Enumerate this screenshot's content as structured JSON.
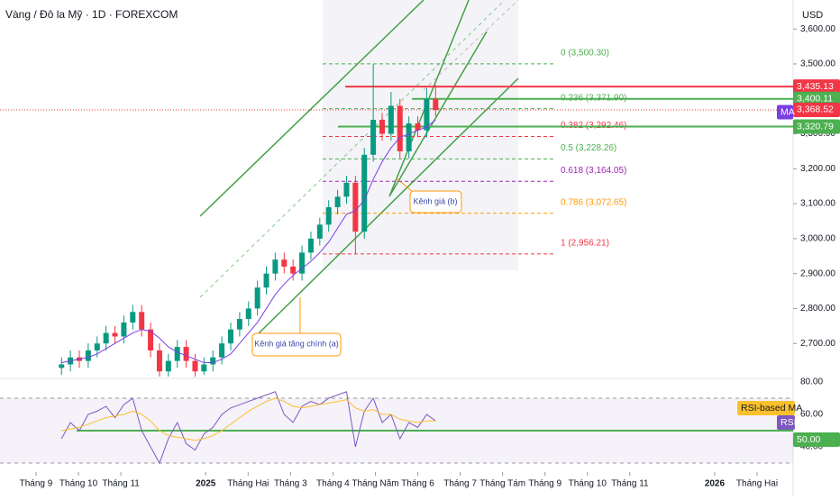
{
  "chart_data": {
    "type": "candlestick",
    "title": "Vàng / Đô la Mỹ · 1D · FOREXCOM",
    "currency": "USD",
    "up_color": "#089981",
    "down_color": "#f23645",
    "x": [
      0.6,
      0.81,
      1.02,
      1.23,
      1.44,
      1.65,
      1.86,
      2.07,
      2.28,
      2.49,
      2.7,
      2.91,
      3.12,
      3.33,
      3.54,
      3.75,
      3.96,
      4.17,
      4.38,
      4.59,
      4.8,
      5.01,
      5.22,
      5.43,
      5.64,
      5.85,
      6.06,
      6.27,
      6.48,
      6.69,
      6.9,
      7.11,
      7.32,
      7.53,
      7.74,
      7.95,
      8.16,
      8.37,
      8.58,
      8.79,
      9.0,
      9.21,
      9.42
    ],
    "open": [
      2630,
      2640,
      2660,
      2650,
      2680,
      2700,
      2730,
      2720,
      2760,
      2790,
      2740,
      2680,
      2620,
      2650,
      2690,
      2650,
      2620,
      2640,
      2660,
      2700,
      2740,
      2770,
      2800,
      2860,
      2900,
      2940,
      2920,
      2900,
      2960,
      3000,
      3040,
      3090,
      3120,
      3160,
      3020,
      3240,
      3340,
      3300,
      3380,
      3250,
      3330,
      3310,
      3400
    ],
    "high": [
      2660,
      2680,
      2680,
      2700,
      2720,
      2750,
      2750,
      2780,
      2810,
      2810,
      2760,
      2700,
      2670,
      2710,
      2710,
      2670,
      2660,
      2680,
      2720,
      2760,
      2790,
      2820,
      2880,
      2920,
      2960,
      2960,
      2940,
      2980,
      3020,
      3060,
      3110,
      3140,
      3180,
      3180,
      3260,
      3500,
      3360,
      3420,
      3400,
      3350,
      3350,
      3430,
      3440
    ],
    "low": [
      2610,
      2620,
      2630,
      2630,
      2660,
      2680,
      2700,
      2700,
      2740,
      2720,
      2660,
      2605,
      2605,
      2630,
      2630,
      2605,
      2610,
      2620,
      2640,
      2680,
      2720,
      2750,
      2780,
      2840,
      2880,
      2900,
      2880,
      2880,
      2940,
      2980,
      3020,
      3070,
      3100,
      2956,
      3000,
      3220,
      3280,
      3280,
      3230,
      3230,
      3290,
      3290,
      3350
    ],
    "close": [
      2640,
      2660,
      2650,
      2680,
      2700,
      2730,
      2720,
      2760,
      2790,
      2740,
      2680,
      2620,
      2650,
      2690,
      2650,
      2620,
      2640,
      2660,
      2700,
      2740,
      2770,
      2800,
      2860,
      2900,
      2940,
      2920,
      2900,
      2960,
      3000,
      3040,
      3090,
      3120,
      3160,
      3020,
      3240,
      3340,
      3300,
      3380,
      3250,
      3330,
      3310,
      3400,
      3368
    ],
    "ma": {
      "name": "MA",
      "color": "#7b3fe4",
      "values": [
        2645,
        2650,
        2655,
        2660,
        2670,
        2685,
        2700,
        2715,
        2730,
        2740,
        2735,
        2715,
        2690,
        2675,
        2665,
        2655,
        2645,
        2645,
        2655,
        2670,
        2700,
        2730,
        2760,
        2800,
        2840,
        2870,
        2895,
        2915,
        2935,
        2960,
        2990,
        3030,
        3070,
        3080,
        3110,
        3170,
        3220,
        3260,
        3290,
        3300,
        3310,
        3320,
        3340
      ]
    },
    "xlim": [
      -0.85,
      17.85
    ],
    "ylim": [
      2600,
      3683
    ],
    "yticks": [
      {
        "value": 2700,
        "label": "2,700.00"
      },
      {
        "value": 2800,
        "label": "2,800.00"
      },
      {
        "value": 2900,
        "label": "2,900.00"
      },
      {
        "value": 3000,
        "label": "3,000.00"
      },
      {
        "value": 3100,
        "label": "3,100.00"
      },
      {
        "value": 3200,
        "label": "3,200.00"
      },
      {
        "value": 3300,
        "label": "3,300.00"
      },
      {
        "value": 3400,
        "label": "3,400.00"
      },
      {
        "value": 3500,
        "label": "3,500.00"
      },
      {
        "value": 3600,
        "label": "3,600.00"
      }
    ],
    "xticks": [
      {
        "value": 0,
        "label": "Tháng 9"
      },
      {
        "value": 1,
        "label": "Tháng 10"
      },
      {
        "value": 2,
        "label": "Tháng 11"
      },
      {
        "value": 4,
        "label": "2025"
      },
      {
        "value": 5,
        "label": "Tháng Hai"
      },
      {
        "value": 6,
        "label": "Tháng 3"
      },
      {
        "value": 7,
        "label": "Tháng 4"
      },
      {
        "value": 8,
        "label": "Tháng Năm"
      },
      {
        "value": 9,
        "label": "Tháng 6"
      },
      {
        "value": 10,
        "label": "Tháng 7"
      },
      {
        "value": 11,
        "label": "Tháng Tám"
      },
      {
        "value": 12,
        "label": "Tháng 9"
      },
      {
        "value": 13,
        "label": "Tháng 10"
      },
      {
        "value": 14,
        "label": "Tháng 11"
      },
      {
        "value": 16,
        "label": "2026"
      },
      {
        "value": 17,
        "label": "Tháng Hai"
      }
    ],
    "price_lines": [
      {
        "value": 3435.13,
        "label": "3,435.13",
        "color": "#f23645"
      },
      {
        "value": 3400.11,
        "label": "3,400.11",
        "color": "#4caf50"
      },
      {
        "value": 3368.52,
        "label": "3,368.52",
        "color": "#f23645"
      },
      {
        "value": 3320.79,
        "label": "3,320.79",
        "color": "#4caf50"
      }
    ],
    "fib_levels": [
      {
        "value": 3500.3,
        "label": "0 (3,500.30)",
        "color": "#4caf50"
      },
      {
        "value": 3371.9,
        "label": "0.236 (3,371.90)",
        "color": "#4caf50"
      },
      {
        "value": 3292.46,
        "label": "0.382 (3,292.46)",
        "color": "#f23645"
      },
      {
        "value": 3228.26,
        "label": "0.5 (3,228.26)",
        "color": "#4caf50"
      },
      {
        "value": 3164.05,
        "label": "0.618 (3,164.05)",
        "color": "#9c27b0"
      },
      {
        "value": 3072.65,
        "label": "0.786 (3,072.65)",
        "color": "#ff9800"
      },
      {
        "value": 2956.21,
        "label": "1 (2,956.21)",
        "color": "#f23645"
      }
    ],
    "annotations": [
      "Kênh giá tăng chính (a)",
      "Kênh giá (b)"
    ],
    "rsi": {
      "name": "RSI",
      "color": "#7e57c2",
      "values": [
        45,
        55,
        50,
        60,
        62,
        65,
        58,
        66,
        70,
        50,
        40,
        30,
        45,
        55,
        42,
        38,
        48,
        52,
        60,
        64,
        66,
        68,
        70,
        72,
        74,
        60,
        55,
        65,
        68,
        66,
        70,
        72,
        74,
        40,
        62,
        70,
        55,
        60,
        45,
        55,
        52,
        60,
        56
      ],
      "ma_name": "RSI-based MA",
      "ma_color": "#fbc02d",
      "ma_values": [
        50,
        51,
        52,
        54,
        56,
        58,
        59,
        60,
        62,
        60,
        56,
        50,
        47,
        46,
        45,
        44,
        45,
        47,
        50,
        54,
        58,
        62,
        65,
        68,
        70,
        68,
        65,
        64,
        65,
        66,
        67,
        68,
        69,
        64,
        62,
        63,
        60,
        60,
        57,
        56,
        55,
        56,
        56
      ],
      "ylim": [
        26.7,
        82.2
      ],
      "yticks": [
        {
          "value": 80,
          "label": "80.00"
        },
        {
          "value": 60,
          "label": "60.00"
        },
        {
          "value": 40,
          "label": "40.00"
        }
      ],
      "bands": [
        70,
        30
      ],
      "midline": {
        "value": 50,
        "label": "50.00",
        "color": "#4caf50"
      }
    }
  }
}
